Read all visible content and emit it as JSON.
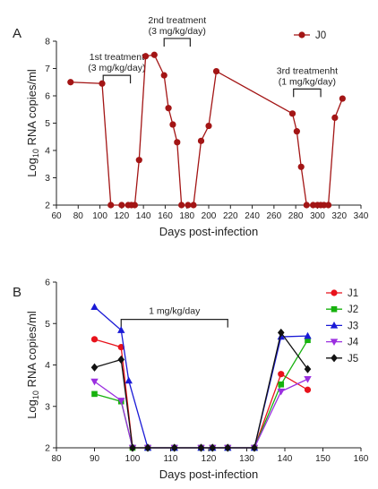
{
  "chart_data": [
    {
      "panel_label": "A",
      "type": "line",
      "xlabel": "Days post-infection",
      "ylabel_base": "Log",
      "ylabel_sub": "10",
      "ylabel_rest": " RNA copies/ml",
      "xlim": [
        60,
        340
      ],
      "ylim": [
        2,
        8
      ],
      "xticks": [
        "60",
        "80",
        "100",
        "120",
        "140",
        "160",
        "180",
        "200",
        "220",
        "240",
        "260",
        "280",
        "300",
        "320",
        "340"
      ],
      "yticks": [
        "2",
        "3",
        "4",
        "5",
        "6",
        "7",
        "8"
      ],
      "legend": "top-right",
      "series": [
        {
          "name": "J0",
          "color": "#a31515",
          "marker": "circle",
          "x": [
            73,
            102,
            110,
            120,
            126,
            129,
            132,
            136,
            142,
            150,
            159,
            163,
            167,
            171,
            175,
            181,
            186,
            193,
            200,
            207,
            277,
            281,
            285,
            290,
            296,
            300,
            303,
            306,
            310,
            316,
            323
          ],
          "y": [
            6.5,
            6.45,
            2,
            2,
            2,
            2,
            2,
            3.65,
            7.45,
            7.5,
            6.75,
            5.55,
            4.95,
            4.3,
            2,
            2,
            2,
            4.35,
            4.9,
            6.9,
            5.35,
            4.7,
            3.4,
            2,
            2,
            2,
            2,
            2,
            2,
            5.2,
            5.9
          ]
        }
      ],
      "annotations": [
        {
          "line1": "1st treatment",
          "line2": "(3 mg/kg/day)",
          "x_start": 103,
          "x_end": 128,
          "y": 6.75
        },
        {
          "line1": "2nd treatment",
          "line2": "(3 mg/kg/day)",
          "x_start": 159,
          "x_end": 183,
          "y": 8.1
        },
        {
          "line1": "3rd treatmenht",
          "line2": "(1 mg/kg/day)",
          "x_start": 278,
          "x_end": 303,
          "y": 6.25
        }
      ]
    },
    {
      "panel_label": "B",
      "type": "line",
      "xlabel": "Days post-infection",
      "ylabel_base": "Log",
      "ylabel_sub": "10",
      "ylabel_rest": " RNA copies/ml",
      "xlim": [
        80,
        160
      ],
      "ylim": [
        2,
        6
      ],
      "xticks": [
        "80",
        "90",
        "100",
        "110",
        "120",
        "130",
        "140",
        "150",
        "160"
      ],
      "yticks": [
        "2",
        "3",
        "4",
        "5",
        "6"
      ],
      "legend": "right",
      "series": [
        {
          "name": "J1",
          "color": "#e8121b",
          "marker": "circle",
          "x": [
            90,
            97,
            100,
            104,
            111,
            118,
            121,
            125,
            132,
            139,
            146
          ],
          "y": [
            4.62,
            4.43,
            2,
            2,
            2,
            2,
            2,
            2,
            2,
            3.78,
            3.4
          ]
        },
        {
          "name": "J2",
          "color": "#17b20e",
          "marker": "square",
          "x": [
            90,
            97,
            100,
            104,
            111,
            118,
            121,
            125,
            132,
            139,
            146
          ],
          "y": [
            3.3,
            3.12,
            2,
            2,
            2,
            2,
            2,
            2,
            2,
            3.53,
            4.6
          ]
        },
        {
          "name": "J3",
          "color": "#1a1ad6",
          "marker": "triangle-up",
          "x": [
            90,
            97,
            99,
            104,
            111,
            118,
            121,
            125,
            132,
            139,
            146
          ],
          "y": [
            5.4,
            4.84,
            3.62,
            2,
            2,
            2,
            2,
            2,
            2,
            4.68,
            4.7
          ]
        },
        {
          "name": "J4",
          "color": "#9b2fe0",
          "marker": "triangle-down",
          "x": [
            90,
            97,
            100,
            104,
            111,
            118,
            121,
            125,
            132,
            139,
            146
          ],
          "y": [
            3.6,
            3.14,
            2,
            2,
            2,
            2,
            2,
            2,
            2,
            3.36,
            3.66
          ]
        },
        {
          "name": "J5",
          "color": "#111111",
          "marker": "diamond",
          "x": [
            90,
            97,
            100,
            104,
            111,
            118,
            121,
            125,
            132,
            139,
            146
          ],
          "y": [
            3.94,
            4.13,
            2,
            2,
            2,
            2,
            2,
            2,
            2,
            4.78,
            3.9
          ]
        }
      ],
      "annotations": [
        {
          "line1": "1 mg/kg/day",
          "line2": "",
          "x_start": 97,
          "x_end": 125,
          "y": 5.1
        }
      ]
    }
  ]
}
